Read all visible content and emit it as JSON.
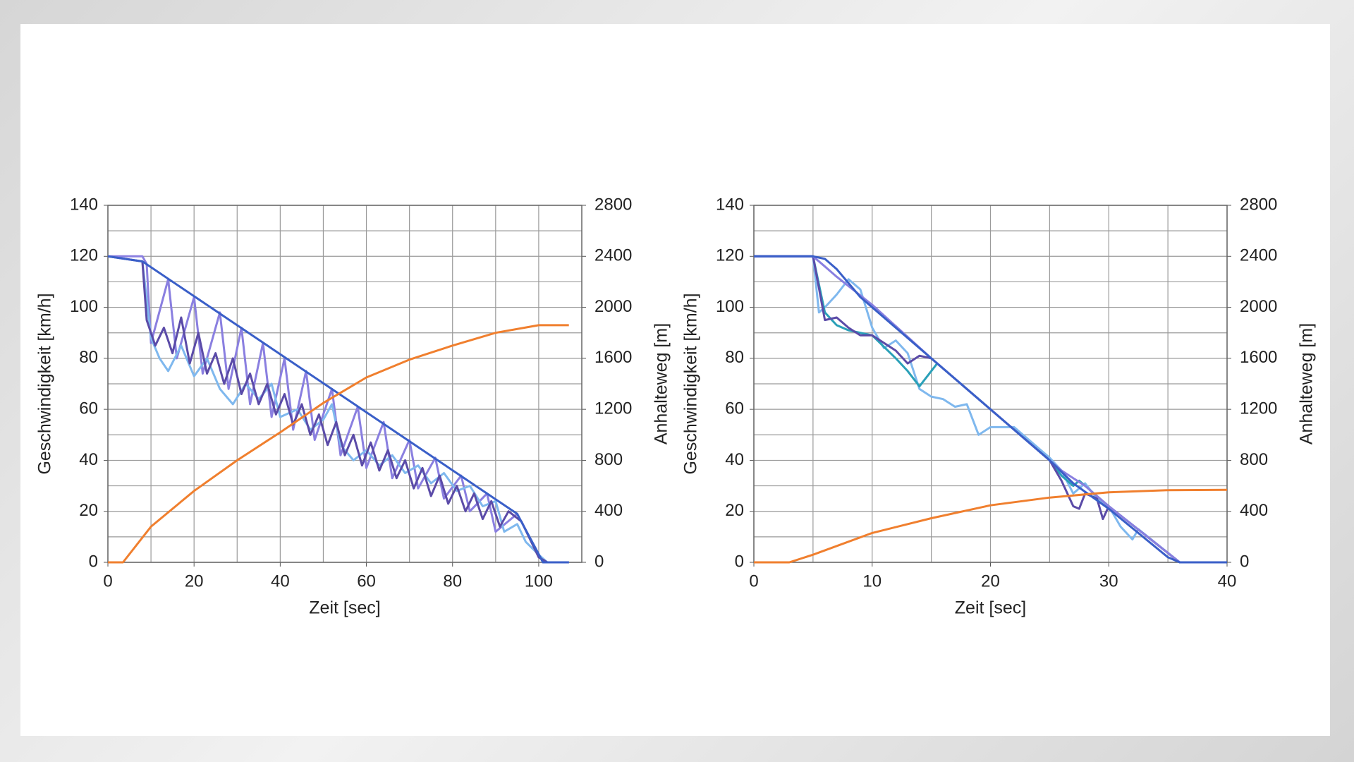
{
  "chart_data": [
    {
      "type": "line",
      "xlabel": "Zeit [sec]",
      "ylabel": "Geschwindigkeit [km/h]",
      "y2label": "Anhalteweg [m]",
      "xlim": [
        0,
        110
      ],
      "xticks": [
        0,
        20,
        40,
        60,
        80,
        100
      ],
      "ylim": [
        0,
        140
      ],
      "yticks": [
        0,
        20,
        40,
        60,
        80,
        100,
        120,
        140
      ],
      "y2lim": [
        0,
        2800
      ],
      "y2ticks": [
        0,
        400,
        800,
        1200,
        1600,
        2000,
        2400,
        2800
      ],
      "grid": true,
      "minor_grid": true,
      "series": [
        {
          "color": "#8a7fe0",
          "x": [
            0,
            8,
            9,
            10,
            14,
            16,
            20,
            22,
            26,
            28,
            31,
            33,
            36,
            38,
            41,
            43,
            46,
            48,
            52,
            54,
            58,
            60,
            64,
            66,
            70,
            72,
            76,
            78,
            82,
            84,
            88,
            90,
            95,
            101,
            107
          ],
          "values": [
            120,
            120,
            117,
            86,
            111,
            80,
            104,
            74,
            98,
            68,
            92,
            62,
            86,
            57,
            80,
            52,
            75,
            48,
            68,
            42,
            61,
            37,
            55,
            33,
            48,
            29,
            41,
            25,
            34,
            20,
            27,
            12,
            19,
            0,
            0
          ]
        },
        {
          "color": "#7fb8ee",
          "x": [
            0,
            8,
            10,
            12,
            14,
            17,
            20,
            23,
            26,
            29,
            32,
            35,
            38,
            40,
            44,
            47,
            50,
            52,
            54,
            57,
            60,
            63,
            66,
            69,
            72,
            75,
            78,
            81,
            84,
            87,
            90,
            92,
            95,
            97,
            100,
            102,
            107
          ],
          "values": [
            120,
            118,
            88,
            80,
            75,
            85,
            73,
            80,
            68,
            62,
            70,
            64,
            70,
            57,
            60,
            52,
            56,
            62,
            46,
            40,
            44,
            38,
            42,
            35,
            38,
            31,
            35,
            28,
            30,
            22,
            24,
            12,
            15,
            8,
            3,
            0,
            0
          ]
        },
        {
          "color": "#5b4ba8",
          "x": [
            0,
            8,
            9,
            11,
            13,
            15,
            17,
            19,
            21,
            23,
            25,
            27,
            29,
            31,
            33,
            35,
            37,
            39,
            41,
            43,
            45,
            47,
            49,
            51,
            53,
            55,
            57,
            59,
            61,
            63,
            65,
            67,
            69,
            71,
            73,
            75,
            77,
            79,
            81,
            83,
            85,
            87,
            89,
            91,
            93,
            96,
            100,
            102,
            107
          ],
          "values": [
            120,
            118,
            95,
            85,
            92,
            82,
            96,
            78,
            90,
            74,
            82,
            70,
            80,
            66,
            74,
            62,
            70,
            58,
            66,
            54,
            62,
            50,
            58,
            46,
            55,
            42,
            50,
            38,
            47,
            36,
            44,
            33,
            40,
            29,
            37,
            26,
            34,
            23,
            30,
            20,
            27,
            17,
            24,
            14,
            20,
            16,
            2,
            0,
            0
          ]
        },
        {
          "color": "#3a5fc8",
          "x": [
            0,
            8,
            95,
            101,
            107
          ],
          "values": [
            120,
            118,
            19,
            0,
            0
          ]
        },
        {
          "color": "#f07f2e",
          "axis": "y2",
          "x": [
            0,
            3.5,
            10,
            20,
            30,
            40,
            50,
            60,
            70,
            80,
            90,
            100,
            107
          ],
          "values": [
            0,
            0,
            280,
            560,
            800,
            1020,
            1250,
            1450,
            1590,
            1700,
            1800,
            1860,
            1860
          ]
        }
      ]
    },
    {
      "type": "line",
      "xlabel": "Zeit [sec]",
      "ylabel": "Geschwindigkeit [km/h]",
      "y2label": "Anhalteweg [m]",
      "xlim": [
        0,
        40
      ],
      "xticks": [
        0,
        10,
        20,
        30,
        40
      ],
      "ylim": [
        0,
        140
      ],
      "yticks": [
        0,
        20,
        40,
        60,
        80,
        100,
        120,
        140
      ],
      "y2lim": [
        0,
        2800
      ],
      "y2ticks": [
        0,
        400,
        800,
        1200,
        1600,
        2000,
        2400,
        2800
      ],
      "grid": true,
      "minor_grid": true,
      "series": [
        {
          "color": "#7fb8ee",
          "x": [
            0,
            5,
            5.5,
            6,
            7,
            8,
            9,
            10,
            11,
            12,
            13,
            14,
            15,
            16,
            17,
            18,
            19,
            20,
            21,
            22,
            25,
            26,
            27,
            28,
            29,
            30,
            31,
            32,
            32.5,
            36,
            40
          ],
          "values": [
            120,
            120,
            98,
            100,
            105,
            111,
            107,
            92,
            84,
            87,
            82,
            68,
            65,
            64,
            61,
            62,
            50,
            53,
            53,
            53,
            41,
            36,
            27,
            31,
            25,
            22,
            14,
            9,
            13,
            0,
            0
          ]
        },
        {
          "color": "#2aa0b8",
          "x": [
            0,
            5,
            6,
            7,
            8,
            10,
            12,
            13,
            14,
            15,
            15.5,
            25,
            26,
            27,
            27.5,
            28,
            30,
            36,
            40
          ],
          "values": [
            120,
            120,
            98,
            93,
            91,
            89,
            80,
            75,
            69,
            75,
            78,
            40,
            34,
            30,
            32,
            30,
            22,
            0,
            0
          ]
        },
        {
          "color": "#5b4ba8",
          "x": [
            0,
            5,
            6,
            7,
            8,
            9,
            10,
            12,
            13,
            14,
            15,
            25,
            26,
            27,
            27.5,
            28,
            29,
            29.5,
            30,
            36,
            40
          ],
          "values": [
            120,
            120,
            95,
            96,
            92,
            89,
            89,
            83,
            78,
            81,
            80,
            40,
            32,
            22,
            21,
            27,
            25,
            17,
            22,
            0,
            0
          ]
        },
        {
          "color": "#8a7fe0",
          "x": [
            0,
            5,
            6,
            7,
            10,
            15,
            26,
            28,
            30,
            36,
            40
          ],
          "values": [
            120,
            120,
            116,
            112,
            101,
            80,
            36,
            30,
            22,
            0,
            0
          ]
        },
        {
          "color": "#3a5fc8",
          "x": [
            0,
            5,
            6,
            7,
            9,
            15,
            25,
            27,
            30,
            35,
            36,
            40
          ],
          "values": [
            120,
            120,
            119,
            115,
            104,
            80,
            40,
            31,
            21,
            2,
            0,
            0
          ]
        },
        {
          "color": "#f07f2e",
          "axis": "y2",
          "x": [
            0,
            3,
            5,
            10,
            15,
            20,
            25,
            30,
            35,
            40
          ],
          "values": [
            0,
            0,
            60,
            230,
            346,
            447,
            508,
            549,
            566,
            569
          ]
        }
      ]
    }
  ]
}
